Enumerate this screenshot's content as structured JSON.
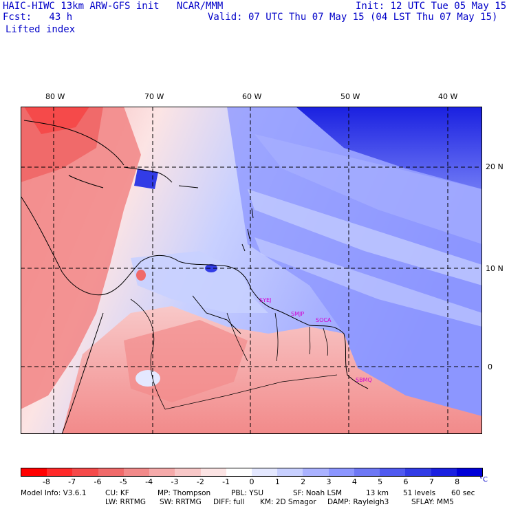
{
  "header": {
    "title_left": "HAIC-HIWC 13km ARW-GFS init   NCAR/MMM",
    "fcst": "Fcst:   43 h",
    "field": "Lifted index",
    "init": "Init: 12 UTC Tue 05 May 15",
    "valid": "Valid: 07 UTC Thu 07 May 15 (04 LST Thu 07 May 15)"
  },
  "map": {
    "lon_labels": [
      "80 W",
      "70 W",
      "60 W",
      "50 W",
      "40 W"
    ],
    "lat_labels": [
      "20 N",
      "10 N",
      "0"
    ],
    "stations": [
      "SYEJ",
      "SMJP",
      "SOCA",
      "SBMQ"
    ]
  },
  "colorbar": {
    "colors": [
      "#ff0000",
      "#ff2a2a",
      "#f54a4a",
      "#f06a6a",
      "#f28a8a",
      "#f5aaaa",
      "#f8c8c8",
      "#fce4e4",
      "#ffffff",
      "#e4e8ff",
      "#c8d0ff",
      "#aab2ff",
      "#8c96ff",
      "#6e78f5",
      "#505af0",
      "#323ce6",
      "#1a20e0",
      "#0000d8"
    ],
    "labels": [
      "-8",
      "-7",
      "-6",
      "-5",
      "-4",
      "-3",
      "-2",
      "-1",
      "0",
      "1",
      "2",
      "3",
      "4",
      "5",
      "6",
      "7",
      "8"
    ],
    "unit": "°C"
  },
  "model_info": {
    "line1": [
      "Model Info: V3.6.1",
      "CU: KF",
      "MP: Thompson",
      "PBL: YSU",
      "SF: Noah LSM",
      "13 km",
      "51 levels",
      "60 sec"
    ],
    "line2": [
      "LW: RRTMG",
      "SW: RRTMG",
      "DIFF: full",
      "KM: 2D Smagor",
      "DAMP: Rayleigh3",
      "SFLAY: MM5"
    ]
  }
}
